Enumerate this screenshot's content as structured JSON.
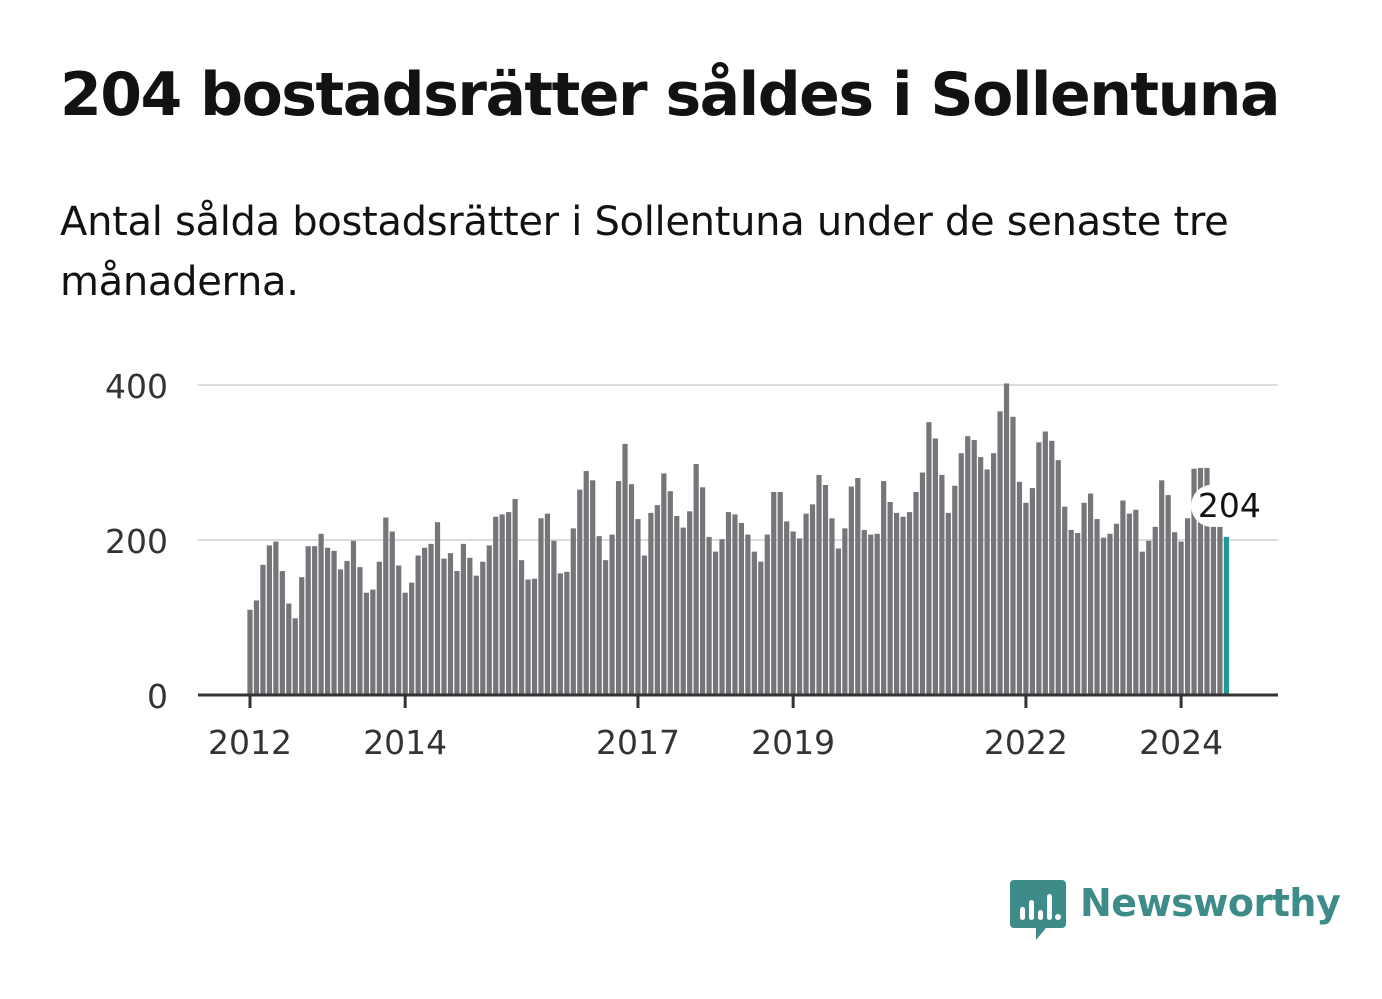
{
  "header": {
    "title": "204 bostadsrätter såldes i Sollentuna",
    "subtitle": "Antal sålda bostadsrätter i Sollentuna under de senaste tre månaderna."
  },
  "colors": {
    "bar": "#75757a",
    "highlight": "#1c9b94",
    "grid": "#dcdcdc",
    "axis": "#333333",
    "text": "#121212",
    "brand": "#3e8c8a"
  },
  "chart_data": {
    "type": "bar",
    "title": "204 bostadsrätter såldes i Sollentuna",
    "xlabel": "",
    "ylabel": "",
    "ylim": [
      0,
      400
    ],
    "yticks": [
      0,
      200,
      400
    ],
    "ytick_labels": [
      "0",
      "200",
      "400"
    ],
    "grid": true,
    "start": "2012-01",
    "xticks": [
      {
        "label": "2012",
        "index": 0
      },
      {
        "label": "2014",
        "index": 24
      },
      {
        "label": "2017",
        "index": 60
      },
      {
        "label": "2019",
        "index": 84
      },
      {
        "label": "2022",
        "index": 120
      },
      {
        "label": "2024",
        "index": 144
      }
    ],
    "highlight_index": 151,
    "highlight_label": "204",
    "values": [
      110,
      122,
      168,
      193,
      198,
      160,
      118,
      99,
      152,
      192,
      192,
      208,
      190,
      186,
      162,
      173,
      199,
      165,
      132,
      136,
      172,
      229,
      211,
      167,
      132,
      145,
      180,
      190,
      195,
      223,
      176,
      183,
      160,
      195,
      177,
      154,
      172,
      193,
      230,
      233,
      236,
      253,
      174,
      149,
      150,
      228,
      234,
      199,
      157,
      159,
      215,
      265,
      289,
      277,
      205,
      174,
      207,
      276,
      324,
      272,
      227,
      180,
      235,
      245,
      286,
      263,
      231,
      216,
      237,
      298,
      268,
      204,
      185,
      201,
      236,
      233,
      222,
      207,
      185,
      172,
      207,
      262,
      262,
      224,
      211,
      202,
      234,
      246,
      284,
      271,
      228,
      189,
      215,
      269,
      280,
      213,
      207,
      208,
      276,
      249,
      235,
      230,
      236,
      262,
      287,
      352,
      331,
      284,
      235,
      270,
      312,
      334,
      329,
      307,
      291,
      312,
      366,
      402,
      359,
      275,
      248,
      267,
      326,
      340,
      328,
      303,
      243,
      213,
      209,
      248,
      260,
      227,
      203,
      208,
      221,
      251,
      234,
      239,
      185,
      199,
      217,
      277,
      258,
      210,
      198,
      228,
      292,
      293,
      293,
      244,
      218,
      204
    ]
  },
  "brand": {
    "name": "Newsworthy",
    "icon": "newsworthy-logo-icon"
  }
}
